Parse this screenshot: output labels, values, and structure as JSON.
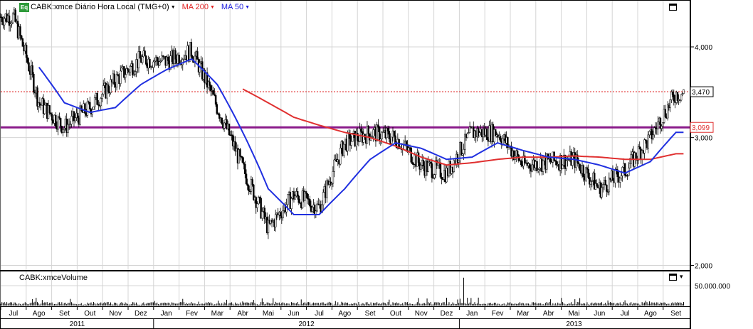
{
  "legend": {
    "symbol_label": "CABK:xmce Diário Hora Local (TMG+0)",
    "ma200_label": "MA 200",
    "ma50_label": "MA 50",
    "eq_icon_text": "Eq",
    "ma200_color": "#e02020",
    "ma50_color": "#2020e0"
  },
  "volume_panel": {
    "label": "CABK:xmceVolume"
  },
  "icons": [
    "maximize-icon",
    "maximize-icon",
    "scroll-down-icon",
    "dropdown-arrow-icon"
  ],
  "chart_data": [
    {
      "type": "candlestick",
      "title": "CABK:xmce Diário Hora Local (TMG+0)",
      "y_scale": "log",
      "ylim": [
        1.98,
        4.6
      ],
      "y_ticks": [
        {
          "value": 4.0,
          "label": "4,000"
        },
        {
          "value": 3.0,
          "label": "3,000"
        },
        {
          "value": 2.0,
          "label": "2,000"
        }
      ],
      "x_months": [
        "Jul",
        "Ago",
        "Set",
        "Out",
        "Nov",
        "Dez",
        "Jan",
        "Fev",
        "Mar",
        "Abr",
        "Mai",
        "Jun",
        "Jul",
        "Ago",
        "Set",
        "Out",
        "Nov",
        "Dez",
        "Jan",
        "Fev",
        "Mar",
        "Abr",
        "Mai",
        "Jun",
        "Jul",
        "Ago",
        "Set"
      ],
      "x_years": [
        "2011",
        "2012",
        "2013"
      ],
      "price_markers": [
        {
          "value": 3.47,
          "label": "3,470",
          "style": "dotted-red"
        },
        {
          "value": 3.099,
          "label": "3,099",
          "style": "solid-purple"
        }
      ],
      "price_series_monthly": [
        {
          "month": "Jul 2011",
          "close": 4.4
        },
        {
          "month": "Ago 2011",
          "close": 3.35
        },
        {
          "month": "Set 2011",
          "close": 3.1
        },
        {
          "month": "Out 2011",
          "close": 3.3
        },
        {
          "month": "Nov 2011",
          "close": 3.6
        },
        {
          "month": "Dez 2011",
          "close": 3.85
        },
        {
          "month": "Jan 2012",
          "close": 3.82
        },
        {
          "month": "Fev 2012",
          "close": 3.95
        },
        {
          "month": "Mar 2012",
          "close": 3.3
        },
        {
          "month": "Abr 2012",
          "close": 2.72
        },
        {
          "month": "Mai 2012",
          "close": 2.25
        },
        {
          "month": "Jun 2012",
          "close": 2.5
        },
        {
          "month": "Jul 2012",
          "close": 2.4
        },
        {
          "month": "Ago 2012",
          "close": 2.95
        },
        {
          "month": "Set 2012",
          "close": 3.05
        },
        {
          "month": "Out 2012",
          "close": 3.0
        },
        {
          "month": "Nov 2012",
          "close": 2.75
        },
        {
          "month": "Dez 2012",
          "close": 2.68
        },
        {
          "month": "Jan 2013",
          "close": 3.05
        },
        {
          "month": "Fev 2013",
          "close": 3.05
        },
        {
          "month": "Mar 2013",
          "close": 2.75
        },
        {
          "month": "Abr 2013",
          "close": 2.78
        },
        {
          "month": "Mai 2013",
          "close": 2.8
        },
        {
          "month": "Jun 2013",
          "close": 2.55
        },
        {
          "month": "Jul 2013",
          "close": 2.7
        },
        {
          "month": "Ago 2013",
          "close": 3.0
        },
        {
          "month": "Set 2013",
          "close": 3.45
        }
      ],
      "ma50_monthly": [
        {
          "month": "Ago 2011",
          "value": 3.75
        },
        {
          "month": "Set 2011",
          "value": 3.35
        },
        {
          "month": "Out 2011",
          "value": 3.25
        },
        {
          "month": "Nov 2011",
          "value": 3.3
        },
        {
          "month": "Dez 2011",
          "value": 3.55
        },
        {
          "month": "Jan 2012",
          "value": 3.72
        },
        {
          "month": "Fev 2012",
          "value": 3.85
        },
        {
          "month": "Mar 2012",
          "value": 3.55
        },
        {
          "month": "Abr 2012",
          "value": 3.05
        },
        {
          "month": "Mai 2012",
          "value": 2.55
        },
        {
          "month": "Jun 2012",
          "value": 2.35
        },
        {
          "month": "Jul 2012",
          "value": 2.35
        },
        {
          "month": "Ago 2012",
          "value": 2.55
        },
        {
          "month": "Set 2012",
          "value": 2.8
        },
        {
          "month": "Out 2012",
          "value": 2.95
        },
        {
          "month": "Nov 2012",
          "value": 2.9
        },
        {
          "month": "Dez 2012",
          "value": 2.8
        },
        {
          "month": "Jan 2013",
          "value": 2.82
        },
        {
          "month": "Fev 2013",
          "value": 2.95
        },
        {
          "month": "Mar 2013",
          "value": 2.88
        },
        {
          "month": "Abr 2013",
          "value": 2.82
        },
        {
          "month": "Mai 2013",
          "value": 2.8
        },
        {
          "month": "Jun 2013",
          "value": 2.75
        },
        {
          "month": "Jul 2013",
          "value": 2.68
        },
        {
          "month": "Ago 2013",
          "value": 2.78
        },
        {
          "month": "Set 2013",
          "value": 3.05
        }
      ],
      "ma200_monthly": [
        {
          "month": "Abr 2012",
          "value": 3.5
        },
        {
          "month": "Mai 2012",
          "value": 3.35
        },
        {
          "month": "Jun 2012",
          "value": 3.2
        },
        {
          "month": "Jul 2012",
          "value": 3.12
        },
        {
          "month": "Ago 2012",
          "value": 3.05
        },
        {
          "month": "Set 2012",
          "value": 3.0
        },
        {
          "month": "Out 2012",
          "value": 2.92
        },
        {
          "month": "Nov 2012",
          "value": 2.82
        },
        {
          "month": "Dez 2012",
          "value": 2.75
        },
        {
          "month": "Jan 2013",
          "value": 2.77
        },
        {
          "month": "Fev 2013",
          "value": 2.8
        },
        {
          "month": "Mar 2013",
          "value": 2.82
        },
        {
          "month": "Abr 2013",
          "value": 2.82
        },
        {
          "month": "Mai 2013",
          "value": 2.83
        },
        {
          "month": "Jun 2013",
          "value": 2.82
        },
        {
          "month": "Jul 2013",
          "value": 2.8
        },
        {
          "month": "Ago 2013",
          "value": 2.8
        },
        {
          "month": "Set 2013",
          "value": 2.85
        }
      ]
    },
    {
      "type": "bar",
      "title": "CABK:xmceVolume",
      "y_ticks": [
        {
          "value": 50000000,
          "label": "50.000.000"
        }
      ],
      "spikes": [
        {
          "month": "Jan 2013",
          "value": 70000000
        }
      ]
    }
  ]
}
